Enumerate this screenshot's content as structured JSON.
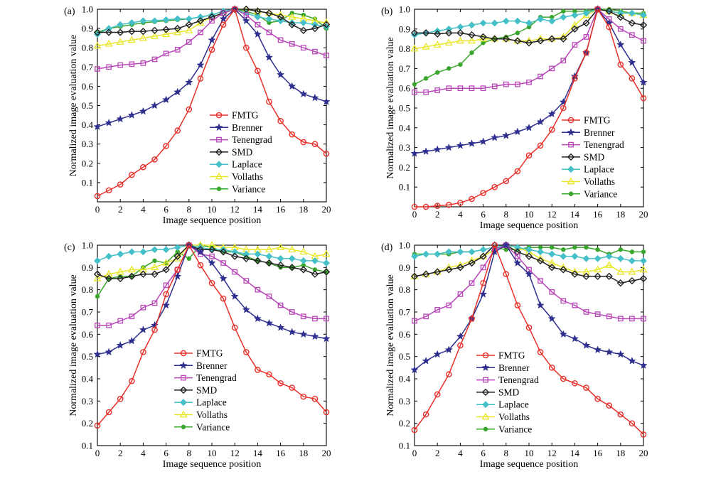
{
  "chart_data": {
    "type": "line",
    "xlabel": "Image sequence position",
    "ylabel": "Normalized image evaluation value",
    "series_meta": [
      {
        "name": "FMTG",
        "color": "#e8302a",
        "marker": "circle"
      },
      {
        "name": "Brenner",
        "color": "#2e2f8e",
        "marker": "star"
      },
      {
        "name": "Tenengrad",
        "color": "#b847b8",
        "marker": "square"
      },
      {
        "name": "SMD",
        "color": "#222222",
        "marker": "diamond"
      },
      {
        "name": "Laplace",
        "color": "#45c0c8",
        "marker": "diamond"
      },
      {
        "name": "Vollaths",
        "color": "#e9e62a",
        "marker": "triangle"
      },
      {
        "name": "Variance",
        "color": "#3aa52c",
        "marker": "dot"
      }
    ],
    "panels": [
      {
        "label": "(a)",
        "x": [
          0,
          1,
          2,
          3,
          4,
          5,
          6,
          7,
          8,
          9,
          10,
          11,
          12,
          13,
          14,
          15,
          16,
          17,
          18,
          19,
          20
        ],
        "xticks": [
          "0",
          "2",
          "4",
          "6",
          "8",
          "10",
          "12",
          "14",
          "16",
          "18",
          "20"
        ],
        "ylim": [
          0,
          1.0
        ],
        "yticks": [
          "0.1",
          "0.2",
          "0.3",
          "0.4",
          "0.5",
          "0.6",
          "0.7",
          "0.8",
          "0.9",
          "1.0"
        ],
        "series": [
          {
            "name": "FMTG",
            "values": [
              0.03,
              0.06,
              0.09,
              0.14,
              0.18,
              0.22,
              0.29,
              0.37,
              0.48,
              0.64,
              0.79,
              0.92,
              1.0,
              0.8,
              0.68,
              0.52,
              0.42,
              0.35,
              0.31,
              0.3,
              0.25
            ]
          },
          {
            "name": "Brenner",
            "values": [
              0.39,
              0.41,
              0.43,
              0.45,
              0.47,
              0.5,
              0.53,
              0.57,
              0.62,
              0.71,
              0.84,
              0.95,
              1.0,
              0.94,
              0.87,
              0.75,
              0.66,
              0.6,
              0.56,
              0.54,
              0.52
            ]
          },
          {
            "name": "Tenengrad",
            "values": [
              0.69,
              0.7,
              0.71,
              0.715,
              0.72,
              0.74,
              0.77,
              0.79,
              0.83,
              0.88,
              0.94,
              0.98,
              1.0,
              0.97,
              0.92,
              0.88,
              0.84,
              0.82,
              0.8,
              0.78,
              0.76
            ]
          },
          {
            "name": "SMD",
            "values": [
              0.88,
              0.88,
              0.88,
              0.885,
              0.885,
              0.89,
              0.895,
              0.9,
              0.92,
              0.94,
              0.96,
              0.98,
              1.0,
              1.0,
              0.99,
              0.98,
              0.96,
              0.92,
              0.89,
              0.9,
              0.92
            ]
          },
          {
            "name": "Laplace",
            "values": [
              0.87,
              0.9,
              0.92,
              0.93,
              0.94,
              0.94,
              0.945,
              0.95,
              0.95,
              0.96,
              0.97,
              0.99,
              1.0,
              0.98,
              0.96,
              0.95,
              0.94,
              0.93,
              0.93,
              0.92,
              0.91
            ]
          },
          {
            "name": "Vollaths",
            "values": [
              0.81,
              0.82,
              0.83,
              0.84,
              0.85,
              0.86,
              0.87,
              0.88,
              0.89,
              0.93,
              0.96,
              0.98,
              1.0,
              1.0,
              0.99,
              0.98,
              0.97,
              0.96,
              0.95,
              0.94,
              0.93
            ]
          },
          {
            "name": "Variance",
            "values": [
              0.88,
              0.9,
              0.91,
              0.92,
              0.93,
              0.935,
              0.94,
              0.945,
              0.95,
              0.96,
              0.97,
              0.99,
              1.0,
              0.99,
              0.97,
              0.93,
              0.94,
              0.98,
              0.97,
              0.95,
              0.9
            ]
          }
        ],
        "legend": "center-right"
      },
      {
        "label": "(b)",
        "x": [
          0,
          1,
          2,
          3,
          4,
          5,
          6,
          7,
          8,
          9,
          10,
          11,
          12,
          13,
          14,
          15,
          16,
          17,
          18,
          19,
          20
        ],
        "xticks": [
          "0",
          "2",
          "4",
          "6",
          "8",
          "10",
          "12",
          "14",
          "16",
          "18",
          "20"
        ],
        "ylim": [
          0,
          1.0
        ],
        "yticks": [
          "0.1",
          "0.2",
          "0.3",
          "0.4",
          "0.5",
          "0.6",
          "0.7",
          "0.8",
          "0.9",
          "1.0"
        ],
        "series": [
          {
            "name": "FMTG",
            "values": [
              0.0,
              0.0,
              0.005,
              0.01,
              0.02,
              0.04,
              0.07,
              0.1,
              0.13,
              0.18,
              0.26,
              0.31,
              0.39,
              0.5,
              0.65,
              0.78,
              1.0,
              0.91,
              0.72,
              0.65,
              0.55
            ]
          },
          {
            "name": "Brenner",
            "values": [
              0.27,
              0.28,
              0.29,
              0.3,
              0.31,
              0.32,
              0.33,
              0.35,
              0.36,
              0.38,
              0.4,
              0.43,
              0.47,
              0.53,
              0.66,
              0.78,
              1.0,
              0.93,
              0.82,
              0.73,
              0.63
            ]
          },
          {
            "name": "Tenengrad",
            "values": [
              0.58,
              0.58,
              0.59,
              0.6,
              0.6,
              0.6,
              0.6,
              0.61,
              0.62,
              0.62,
              0.63,
              0.66,
              0.7,
              0.74,
              0.82,
              0.86,
              1.0,
              0.95,
              0.9,
              0.87,
              0.84
            ]
          },
          {
            "name": "SMD",
            "values": [
              0.88,
              0.88,
              0.875,
              0.88,
              0.88,
              0.87,
              0.86,
              0.85,
              0.85,
              0.84,
              0.83,
              0.84,
              0.85,
              0.85,
              0.9,
              0.93,
              1.0,
              0.99,
              0.96,
              0.93,
              0.92
            ]
          },
          {
            "name": "Laplace",
            "values": [
              0.87,
              0.88,
              0.89,
              0.9,
              0.91,
              0.92,
              0.93,
              0.93,
              0.94,
              0.94,
              0.93,
              0.95,
              0.94,
              0.96,
              0.97,
              0.98,
              1.0,
              0.99,
              0.98,
              0.98,
              0.97
            ]
          },
          {
            "name": "Vollaths",
            "values": [
              0.8,
              0.81,
              0.82,
              0.83,
              0.84,
              0.84,
              0.85,
              0.85,
              0.85,
              0.84,
              0.84,
              0.85,
              0.85,
              0.86,
              0.92,
              0.97,
              1.0,
              0.99,
              0.98,
              0.98,
              0.97
            ]
          },
          {
            "name": "Variance",
            "values": [
              0.62,
              0.65,
              0.68,
              0.7,
              0.72,
              0.78,
              0.83,
              0.85,
              0.86,
              0.88,
              0.91,
              0.96,
              0.96,
              0.99,
              0.99,
              0.99,
              1.0,
              1.0,
              0.99,
              0.98,
              0.98
            ]
          }
        ],
        "legend": "center-right"
      },
      {
        "label": "(c)",
        "x": [
          0,
          1,
          2,
          3,
          4,
          5,
          6,
          7,
          8,
          9,
          10,
          11,
          12,
          13,
          14,
          15,
          16,
          17,
          18,
          19,
          20
        ],
        "xticks": [
          "0",
          "2",
          "4",
          "6",
          "8",
          "10",
          "12",
          "14",
          "16",
          "18",
          "20"
        ],
        "ylim": [
          0.1,
          1.0
        ],
        "yticks": [
          "0.1",
          "0.2",
          "0.3",
          "0.4",
          "0.5",
          "0.6",
          "0.7",
          "0.8",
          "0.9",
          "1.0"
        ],
        "series": [
          {
            "name": "FMTG",
            "values": [
              0.19,
              0.25,
              0.31,
              0.39,
              0.52,
              0.62,
              0.78,
              0.89,
              1.0,
              0.91,
              0.83,
              0.76,
              0.63,
              0.52,
              0.44,
              0.42,
              0.38,
              0.36,
              0.32,
              0.31,
              0.25
            ]
          },
          {
            "name": "Brenner",
            "values": [
              0.51,
              0.52,
              0.55,
              0.57,
              0.62,
              0.64,
              0.73,
              0.86,
              1.0,
              0.97,
              0.92,
              0.85,
              0.77,
              0.71,
              0.67,
              0.65,
              0.63,
              0.61,
              0.6,
              0.59,
              0.58
            ]
          },
          {
            "name": "Tenengrad",
            "values": [
              0.64,
              0.64,
              0.66,
              0.68,
              0.72,
              0.74,
              0.82,
              0.89,
              1.0,
              0.96,
              0.95,
              0.92,
              0.88,
              0.84,
              0.8,
              0.77,
              0.73,
              0.7,
              0.68,
              0.67,
              0.67
            ]
          },
          {
            "name": "SMD",
            "values": [
              0.87,
              0.85,
              0.85,
              0.86,
              0.87,
              0.87,
              0.89,
              0.95,
              1.0,
              0.98,
              0.98,
              0.97,
              0.95,
              0.94,
              0.93,
              0.92,
              0.91,
              0.9,
              0.89,
              0.87,
              0.88
            ]
          },
          {
            "name": "Laplace",
            "values": [
              0.93,
              0.95,
              0.96,
              0.97,
              0.97,
              0.98,
              0.98,
              0.99,
              1.0,
              0.99,
              0.98,
              0.98,
              0.97,
              0.96,
              0.96,
              0.95,
              0.94,
              0.94,
              0.93,
              0.93,
              0.92
            ]
          },
          {
            "name": "Vollaths",
            "values": [
              0.85,
              0.87,
              0.88,
              0.89,
              0.89,
              0.9,
              0.92,
              0.94,
              1.0,
              1.0,
              1.0,
              0.99,
              0.99,
              0.98,
              0.98,
              0.98,
              0.99,
              0.98,
              0.97,
              0.95,
              0.96
            ]
          },
          {
            "name": "Variance",
            "values": [
              0.77,
              0.85,
              0.86,
              0.86,
              0.9,
              0.93,
              0.92,
              0.97,
              0.94,
              1.0,
              0.99,
              0.97,
              0.97,
              0.95,
              0.93,
              0.92,
              0.9,
              0.9,
              0.91,
              0.89,
              0.88
            ]
          }
        ],
        "legend": "lower-center"
      },
      {
        "label": "(d)",
        "x": [
          0,
          1,
          2,
          3,
          4,
          5,
          6,
          7,
          8,
          9,
          10,
          11,
          12,
          13,
          14,
          15,
          16,
          17,
          18,
          19,
          20
        ],
        "xticks": [
          "0",
          "2",
          "4",
          "6",
          "8",
          "10",
          "12",
          "14",
          "16",
          "18",
          "20"
        ],
        "ylim": [
          0.1,
          1.0
        ],
        "yticks": [
          "0.1",
          "0.2",
          "0.3",
          "0.4",
          "0.5",
          "0.6",
          "0.7",
          "0.8",
          "0.9",
          "1.0"
        ],
        "series": [
          {
            "name": "FMTG",
            "values": [
              0.17,
              0.24,
              0.33,
              0.42,
              0.55,
              0.67,
              0.83,
              1.0,
              0.87,
              0.73,
              0.63,
              0.52,
              0.45,
              0.4,
              0.38,
              0.36,
              0.31,
              0.28,
              0.24,
              0.2,
              0.15
            ]
          },
          {
            "name": "Brenner",
            "values": [
              0.44,
              0.48,
              0.51,
              0.53,
              0.59,
              0.67,
              0.78,
              0.97,
              1.0,
              0.92,
              0.87,
              0.73,
              0.67,
              0.6,
              0.58,
              0.55,
              0.53,
              0.52,
              0.51,
              0.48,
              0.46
            ]
          },
          {
            "name": "Tenengrad",
            "values": [
              0.66,
              0.68,
              0.71,
              0.73,
              0.78,
              0.83,
              0.9,
              0.98,
              1.0,
              0.95,
              0.89,
              0.84,
              0.79,
              0.75,
              0.73,
              0.7,
              0.69,
              0.68,
              0.67,
              0.67,
              0.67
            ]
          },
          {
            "name": "SMD",
            "values": [
              0.86,
              0.87,
              0.88,
              0.89,
              0.9,
              0.92,
              0.95,
              1.0,
              1.0,
              0.97,
              0.95,
              0.93,
              0.9,
              0.89,
              0.87,
              0.86,
              0.86,
              0.86,
              0.83,
              0.84,
              0.85
            ]
          },
          {
            "name": "Laplace",
            "values": [
              0.95,
              0.96,
              0.96,
              0.97,
              0.97,
              0.97,
              0.98,
              0.99,
              1.0,
              0.99,
              0.98,
              0.97,
              0.96,
              0.95,
              0.95,
              0.94,
              0.94,
              0.95,
              0.94,
              0.93,
              0.93
            ]
          },
          {
            "name": "Vollaths",
            "values": [
              0.86,
              0.87,
              0.88,
              0.9,
              0.91,
              0.93,
              0.95,
              0.98,
              1.0,
              0.99,
              0.97,
              0.94,
              0.92,
              0.9,
              0.88,
              0.88,
              0.89,
              0.91,
              0.88,
              0.88,
              0.89
            ]
          },
          {
            "name": "Variance",
            "values": [
              0.96,
              0.96,
              0.96,
              0.96,
              0.97,
              0.97,
              0.98,
              0.99,
              0.98,
              0.98,
              0.99,
              0.99,
              0.99,
              0.98,
              0.99,
              0.99,
              0.98,
              0.96,
              0.98,
              0.97,
              0.97
            ]
          }
        ],
        "legend": "lower-center"
      }
    ]
  }
}
